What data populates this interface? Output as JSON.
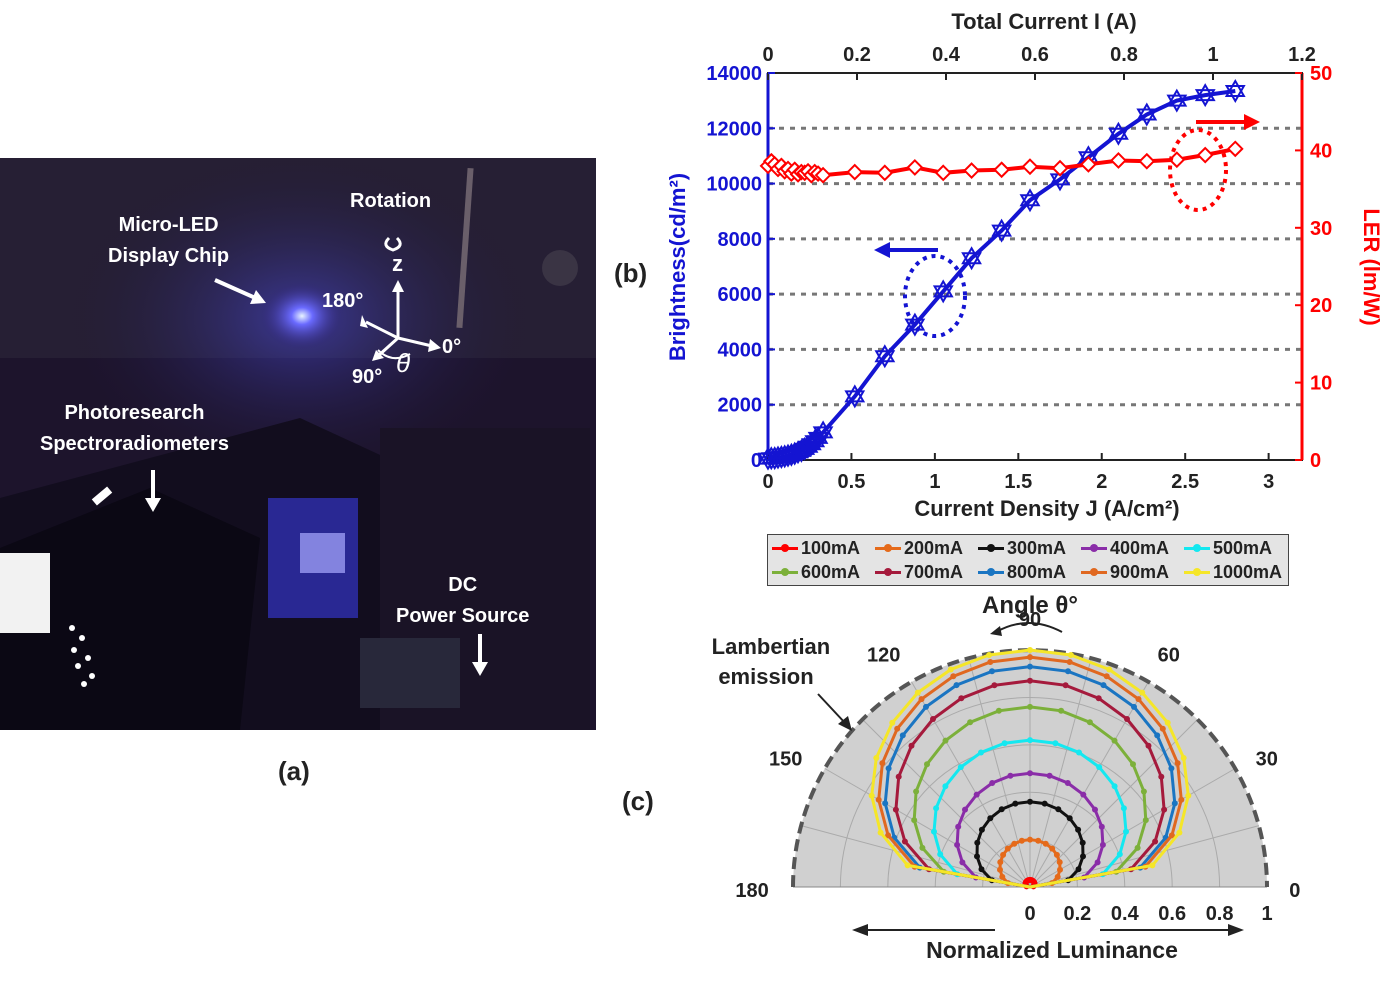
{
  "panel_labels": {
    "a": "(a)",
    "b": "(b)",
    "c": "(c)"
  },
  "photo": {
    "chip_label": "Micro-LED\nDisplay Chip",
    "rotation_label": "Rotation",
    "axis_z": "z",
    "axis_0": "0°",
    "axis_90": "90°",
    "axis_180": "180°",
    "theta": "θ",
    "spectro_label": "Photoresearch\nSpectroradiometers",
    "power_label": "DC\nPower Source"
  },
  "colors": {
    "brightness": "#1414d2",
    "ler": "#ff0000",
    "polar_bg": "#d0d0d0",
    "photo_bg": "#1d142c"
  },
  "chart_data": [
    {
      "id": "b",
      "type": "line",
      "xlabel": "Current Density J (A/cm²)",
      "x2label": "Total Current I (A)",
      "ylabel": "Brightness(cd/m²)",
      "y2label": "LER (lm/W)",
      "xlim": [
        0,
        3.2
      ],
      "xticks": [
        0,
        0.5,
        1,
        1.5,
        2,
        2.5,
        3
      ],
      "xticklabels": [
        "0",
        "0.5",
        "1",
        "1.5",
        "2",
        "2.5",
        "3"
      ],
      "x2lim": [
        0,
        1.2
      ],
      "x2ticks": [
        0,
        0.2,
        0.4,
        0.6,
        0.8,
        1,
        1.2
      ],
      "x2ticklabels": [
        "0",
        "0.2",
        "0.4",
        "0.6",
        "0.8",
        "1",
        "1.2"
      ],
      "ylim": [
        0,
        14000
      ],
      "yticks": [
        0,
        2000,
        4000,
        6000,
        8000,
        10000,
        12000,
        14000
      ],
      "yticklabels": [
        "0",
        "2000",
        "4000",
        "6000",
        "8000",
        "10000",
        "12000",
        "14000"
      ],
      "y2lim": [
        0,
        50
      ],
      "y2ticks": [
        0,
        10,
        20,
        30,
        40,
        50
      ],
      "y2ticklabels": [
        "0",
        "10",
        "20",
        "30",
        "40",
        "50"
      ],
      "grid": "horizontal dashed",
      "series": [
        {
          "axis": "left",
          "marker": "hexagram",
          "x": [
            0,
            0.02,
            0.04,
            0.06,
            0.08,
            0.1,
            0.12,
            0.14,
            0.16,
            0.18,
            0.2,
            0.22,
            0.24,
            0.26,
            0.28,
            0.3,
            0.33,
            0.52,
            0.7,
            0.88,
            1.05,
            1.22,
            1.4,
            1.57,
            1.75,
            1.92,
            2.1,
            2.27,
            2.45,
            2.62,
            2.8
          ],
          "y": [
            50,
            60,
            70,
            90,
            110,
            130,
            160,
            190,
            230,
            280,
            330,
            400,
            480,
            570,
            680,
            800,
            1000,
            2300,
            3750,
            4900,
            6100,
            7300,
            8300,
            9400,
            10150,
            10950,
            11800,
            12500,
            13000,
            13200,
            13350
          ]
        },
        {
          "axis": "right",
          "marker": "diamond",
          "x": [
            0,
            0.02,
            0.04,
            0.06,
            0.08,
            0.1,
            0.12,
            0.14,
            0.16,
            0.18,
            0.2,
            0.22,
            0.24,
            0.26,
            0.28,
            0.3,
            0.33,
            0.52,
            0.7,
            0.88,
            1.05,
            1.22,
            1.4,
            1.57,
            1.75,
            1.92,
            2.1,
            2.27,
            2.45,
            2.62,
            2.8
          ],
          "y": [
            38.0,
            38.6,
            38.2,
            37.6,
            38.0,
            37.3,
            37.6,
            37.0,
            37.5,
            36.9,
            37.2,
            37.1,
            37.3,
            36.8,
            37.2,
            37.0,
            36.8,
            37.2,
            37.1,
            37.8,
            37.1,
            37.4,
            37.5,
            37.9,
            37.7,
            38.2,
            38.7,
            38.6,
            38.8,
            39.4,
            40.2
          ]
        }
      ],
      "annotations": []
    },
    {
      "id": "c",
      "type": "polar",
      "title": "Angle θ°",
      "radial_label": "Normalized Luminance",
      "annotation": "Lambertian\nemission",
      "rlim": [
        0,
        1
      ],
      "rticks": [
        0,
        0.2,
        0.4,
        0.6,
        0.8,
        1
      ],
      "rticklabels": [
        "0",
        "0.2",
        "0.4",
        "0.6",
        "0.8",
        "1"
      ],
      "thetaticks": [
        0,
        30,
        60,
        90,
        120,
        150,
        180
      ],
      "thetaticklabels": [
        "0",
        "30",
        "60",
        "90",
        "120",
        "150",
        "180"
      ],
      "reference": {
        "name": "Lambertian emission",
        "style": "dashed",
        "r": 1.0
      },
      "series": [
        {
          "name": "100mA",
          "color": "#ff0000",
          "r_peak": 0.03,
          "r_side": 0.025
        },
        {
          "name": "200mA",
          "color": "#e56a1a",
          "r_peak": 0.2,
          "r_side": 0.16
        },
        {
          "name": "300mA",
          "color": "#111111",
          "r_peak": 0.36,
          "r_side": 0.27
        },
        {
          "name": "400mA",
          "color": "#8a2da8",
          "r_peak": 0.48,
          "r_side": 0.4
        },
        {
          "name": "500mA",
          "color": "#14e8f0",
          "r_peak": 0.62,
          "r_side": 0.55
        },
        {
          "name": "600mA",
          "color": "#7cb03a",
          "r_peak": 0.76,
          "r_side": 0.64
        },
        {
          "name": "700mA",
          "color": "#a51a3c",
          "r_peak": 0.87,
          "r_side": 0.76
        },
        {
          "name": "800mA",
          "color": "#1a75c2",
          "r_peak": 0.93,
          "r_side": 0.84
        },
        {
          "name": "900mA",
          "color": "#e06820",
          "r_peak": 0.97,
          "r_side": 0.88
        },
        {
          "name": "1000mA",
          "color": "#f5e628",
          "r_peak": 1.0,
          "r_side": 0.95
        }
      ]
    }
  ]
}
